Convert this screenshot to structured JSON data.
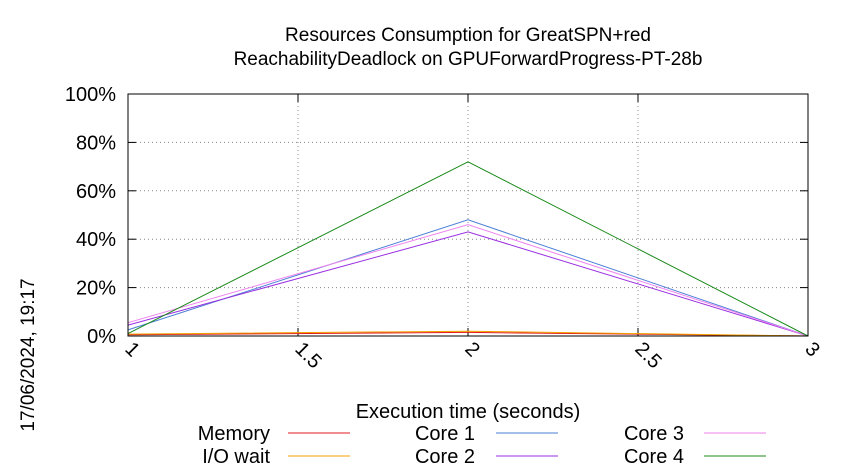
{
  "chart_data": {
    "type": "line",
    "title_line1": "Resources Consumption for GreatSPN+red",
    "title_line2": "ReachabilityDeadlock on GPUForwardProgress-PT-28b",
    "xlabel": "Execution time (seconds)",
    "ylabel": "",
    "timestamp": "17/06/2024, 19:17",
    "xlim": [
      1,
      3
    ],
    "ylim": [
      0,
      100
    ],
    "x_ticks": [
      "1",
      "1.5",
      "2",
      "2.5",
      "3"
    ],
    "y_ticks": [
      "0%",
      "20%",
      "40%",
      "60%",
      "80%",
      "100%"
    ],
    "grid": true,
    "legend_position": "bottom",
    "x": [
      1,
      2,
      3
    ],
    "series": [
      {
        "name": "Memory",
        "color": "#e31a1c",
        "values": [
          0.5,
          1.5,
          0
        ]
      },
      {
        "name": "I/O wait",
        "color": "#f0a000",
        "values": [
          0.8,
          2.0,
          0
        ]
      },
      {
        "name": "Core 1",
        "color": "#4a7fd6",
        "values": [
          2.5,
          48,
          0
        ]
      },
      {
        "name": "Core 2",
        "color": "#9a2fe0",
        "values": [
          4.5,
          43,
          0
        ]
      },
      {
        "name": "Core 3",
        "color": "#ee82ee",
        "values": [
          5.5,
          46,
          0
        ]
      },
      {
        "name": "Core 4",
        "color": "#1a8a1a",
        "values": [
          1.0,
          72,
          0
        ]
      }
    ]
  }
}
